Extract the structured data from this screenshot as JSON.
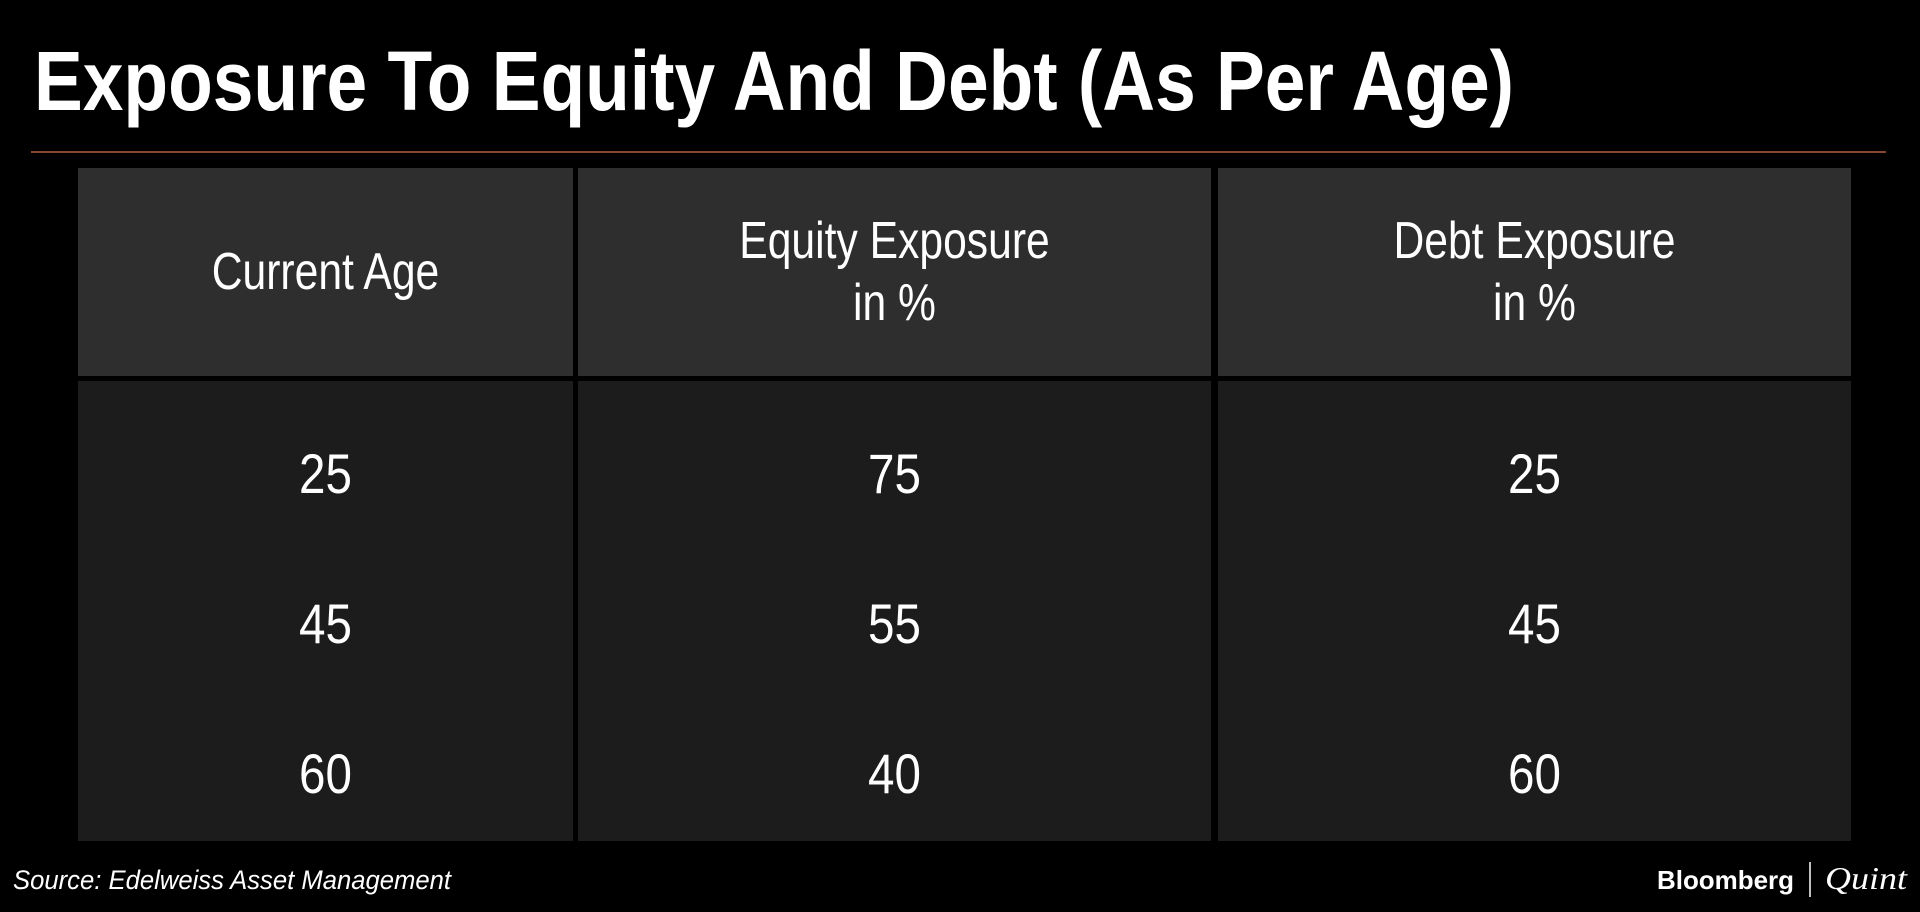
{
  "title": "Exposure To Equity And Debt (As Per Age)",
  "table": {
    "header": [
      [
        "Current Age"
      ],
      [
        "Equity Exposure",
        "in %"
      ],
      [
        "Debt Exposure",
        "in %"
      ]
    ],
    "rows": [
      [
        25,
        75,
        25
      ],
      [
        45,
        55,
        45
      ],
      [
        60,
        40,
        60
      ]
    ]
  },
  "footer": {
    "source": "Source: Edelweiss Asset Management",
    "logo": [
      "Bloomberg",
      "Quint"
    ]
  }
}
